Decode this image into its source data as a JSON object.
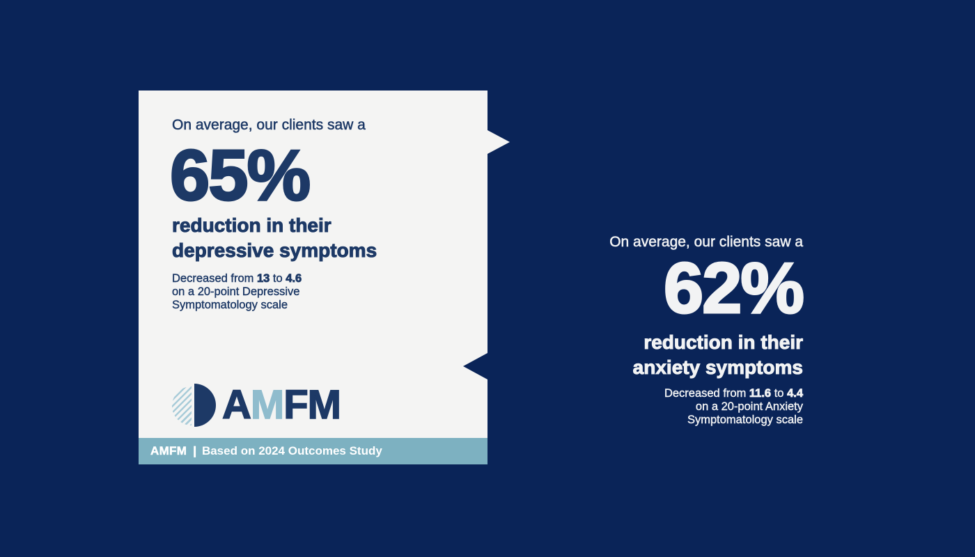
{
  "colors": {
    "background": "#0a2458",
    "card_background": "#f4f4f3",
    "navy_text": "#1d3966",
    "footer_bar": "#7db1c1",
    "logo_light_blue": "#8fbccd",
    "logo_stripe_blue": "#a9ccd9",
    "white_text": "#f2f3f4"
  },
  "depression_card": {
    "intro": "On average, our clients saw a",
    "stat": "65%",
    "headline_line1": "reduction in their",
    "headline_line2": "depressive symptoms",
    "detail": {
      "prefix": "Decreased from ",
      "from_value": "13",
      "connector": " to ",
      "to_value": "4.6",
      "line2": "on a 20-point Depressive",
      "line3": "Symptomatology scale"
    }
  },
  "logo": {
    "letter1": "A",
    "letter2": "M",
    "letter3": "F",
    "letter4": "M"
  },
  "footer": {
    "brand": "AMFM",
    "separator": "|",
    "text": "Based on 2024 Outcomes Study"
  },
  "anxiety_block": {
    "intro": "On average, our clients saw a",
    "stat": "62%",
    "headline_line1": "reduction in their",
    "headline_line2": "anxiety symptoms",
    "detail": {
      "prefix": "Decreased from ",
      "from_value": "11.6",
      "connector": " to ",
      "to_value": "4.4",
      "line2": "on a 20-point Anxiety",
      "line3": "Symptomatology scale"
    }
  }
}
